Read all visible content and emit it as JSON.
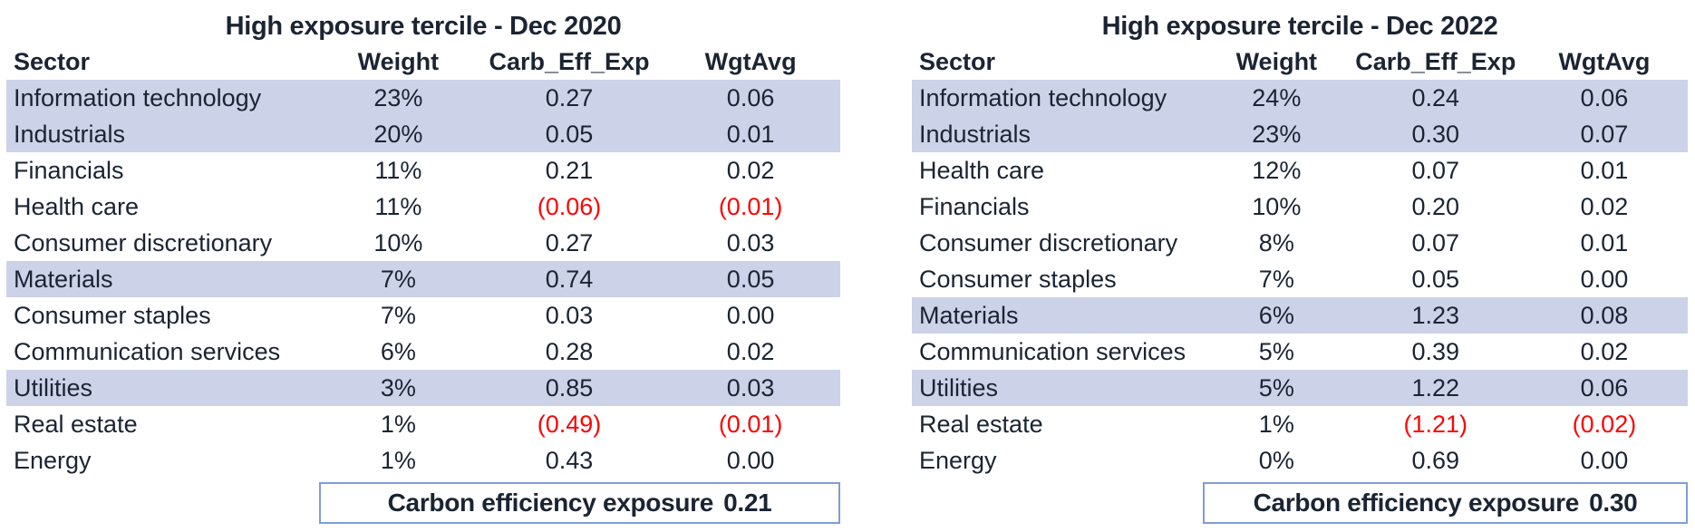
{
  "colors": {
    "text": "#1b2433",
    "negative_value": "#fa0505",
    "row_shade": "#ccd2e8",
    "footer_border": "#7f9dd6",
    "background": "#ffffff"
  },
  "tables": [
    {
      "title": "High exposure tercile - Dec 2020",
      "columns": [
        "Sector",
        "Weight",
        "Carb_Eff_Exp",
        "WgtAvg"
      ],
      "rows": [
        {
          "sector": "Information technology",
          "weight": "23%",
          "carb_eff_exp": "0.27",
          "wgtavg": "0.06",
          "shaded": true,
          "negative": false
        },
        {
          "sector": "Industrials",
          "weight": "20%",
          "carb_eff_exp": "0.05",
          "wgtavg": "0.01",
          "shaded": true,
          "negative": false
        },
        {
          "sector": "Financials",
          "weight": "11%",
          "carb_eff_exp": "0.21",
          "wgtavg": "0.02",
          "shaded": false,
          "negative": false
        },
        {
          "sector": "Health care",
          "weight": "11%",
          "carb_eff_exp": "(0.06)",
          "wgtavg": "(0.01)",
          "shaded": false,
          "negative": true
        },
        {
          "sector": "Consumer discretionary",
          "weight": "10%",
          "carb_eff_exp": "0.27",
          "wgtavg": "0.03",
          "shaded": false,
          "negative": false
        },
        {
          "sector": "Materials",
          "weight": "7%",
          "carb_eff_exp": "0.74",
          "wgtavg": "0.05",
          "shaded": true,
          "negative": false
        },
        {
          "sector": "Consumer staples",
          "weight": "7%",
          "carb_eff_exp": "0.03",
          "wgtavg": "0.00",
          "shaded": false,
          "negative": false
        },
        {
          "sector": "Communication services",
          "weight": "6%",
          "carb_eff_exp": "0.28",
          "wgtavg": "0.02",
          "shaded": false,
          "negative": false
        },
        {
          "sector": "Utilities",
          "weight": "3%",
          "carb_eff_exp": "0.85",
          "wgtavg": "0.03",
          "shaded": true,
          "negative": false
        },
        {
          "sector": "Real estate",
          "weight": "1%",
          "carb_eff_exp": "(0.49)",
          "wgtavg": "(0.01)",
          "shaded": false,
          "negative": true
        },
        {
          "sector": "Energy",
          "weight": "1%",
          "carb_eff_exp": "0.43",
          "wgtavg": "0.00",
          "shaded": false,
          "negative": false
        }
      ],
      "footer": {
        "label": "Carbon efficiency exposure",
        "value": "0.21"
      }
    },
    {
      "title": "High exposure tercile - Dec 2022",
      "columns": [
        "Sector",
        "Weight",
        "Carb_Eff_Exp",
        "WgtAvg"
      ],
      "rows": [
        {
          "sector": "Information technology",
          "weight": "24%",
          "carb_eff_exp": "0.24",
          "wgtavg": "0.06",
          "shaded": true,
          "negative": false
        },
        {
          "sector": "Industrials",
          "weight": "23%",
          "carb_eff_exp": "0.30",
          "wgtavg": "0.07",
          "shaded": true,
          "negative": false
        },
        {
          "sector": "Health care",
          "weight": "12%",
          "carb_eff_exp": "0.07",
          "wgtavg": "0.01",
          "shaded": false,
          "negative": false
        },
        {
          "sector": "Financials",
          "weight": "10%",
          "carb_eff_exp": "0.20",
          "wgtavg": "0.02",
          "shaded": false,
          "negative": false
        },
        {
          "sector": "Consumer discretionary",
          "weight": "8%",
          "carb_eff_exp": "0.07",
          "wgtavg": "0.01",
          "shaded": false,
          "negative": false
        },
        {
          "sector": "Consumer staples",
          "weight": "7%",
          "carb_eff_exp": "0.05",
          "wgtavg": "0.00",
          "shaded": false,
          "negative": false
        },
        {
          "sector": "Materials",
          "weight": "6%",
          "carb_eff_exp": "1.23",
          "wgtavg": "0.08",
          "shaded": true,
          "negative": false
        },
        {
          "sector": "Communication services",
          "weight": "5%",
          "carb_eff_exp": "0.39",
          "wgtavg": "0.02",
          "shaded": false,
          "negative": false
        },
        {
          "sector": "Utilities",
          "weight": "5%",
          "carb_eff_exp": "1.22",
          "wgtavg": "0.06",
          "shaded": true,
          "negative": false
        },
        {
          "sector": "Real estate",
          "weight": "1%",
          "carb_eff_exp": "(1.21)",
          "wgtavg": "(0.02)",
          "shaded": false,
          "negative": true
        },
        {
          "sector": "Energy",
          "weight": "0%",
          "carb_eff_exp": "0.69",
          "wgtavg": "0.00",
          "shaded": false,
          "negative": false
        }
      ],
      "footer": {
        "label": "Carbon efficiency exposure",
        "value": "0.30"
      }
    }
  ]
}
